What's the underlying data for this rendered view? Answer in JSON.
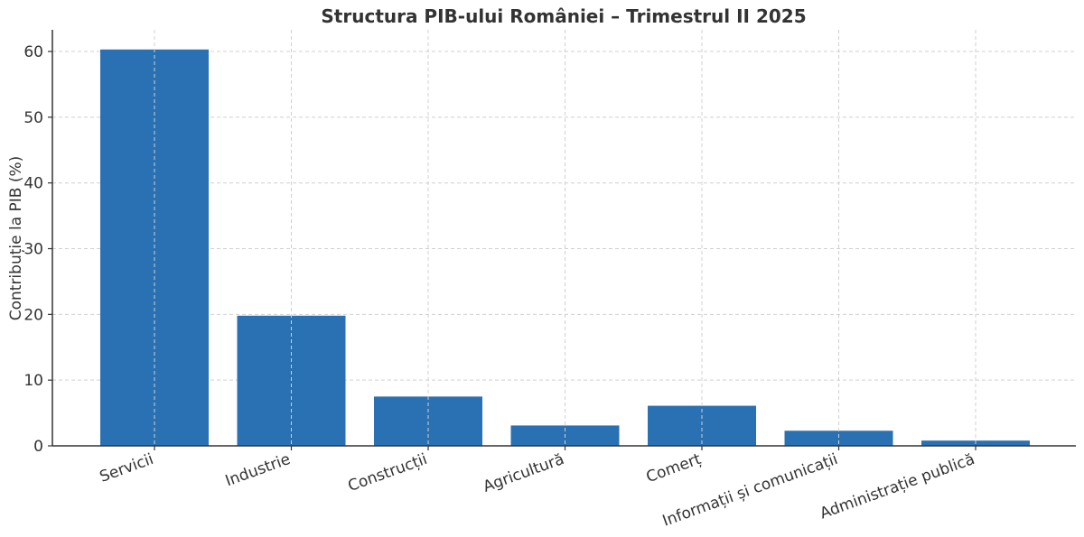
{
  "chart_data": {
    "type": "bar",
    "title": "Structura PIB-ului României – Trimestrul II 2025",
    "xlabel": "",
    "ylabel": "Contribuție la PIB (%)",
    "categories": [
      "Servicii",
      "Industrie",
      "Construcții",
      "Agricultură",
      "Comerț",
      "Informații și comunicații",
      "Administrație publică"
    ],
    "values": [
      60.3,
      19.8,
      7.5,
      3.1,
      6.1,
      2.3,
      0.8
    ],
    "ylim": [
      0,
      63.3
    ],
    "yticks": [
      0,
      10,
      20,
      30,
      40,
      50,
      60
    ],
    "grid": true,
    "bar_color": "#2a71b3",
    "legend": "none"
  }
}
